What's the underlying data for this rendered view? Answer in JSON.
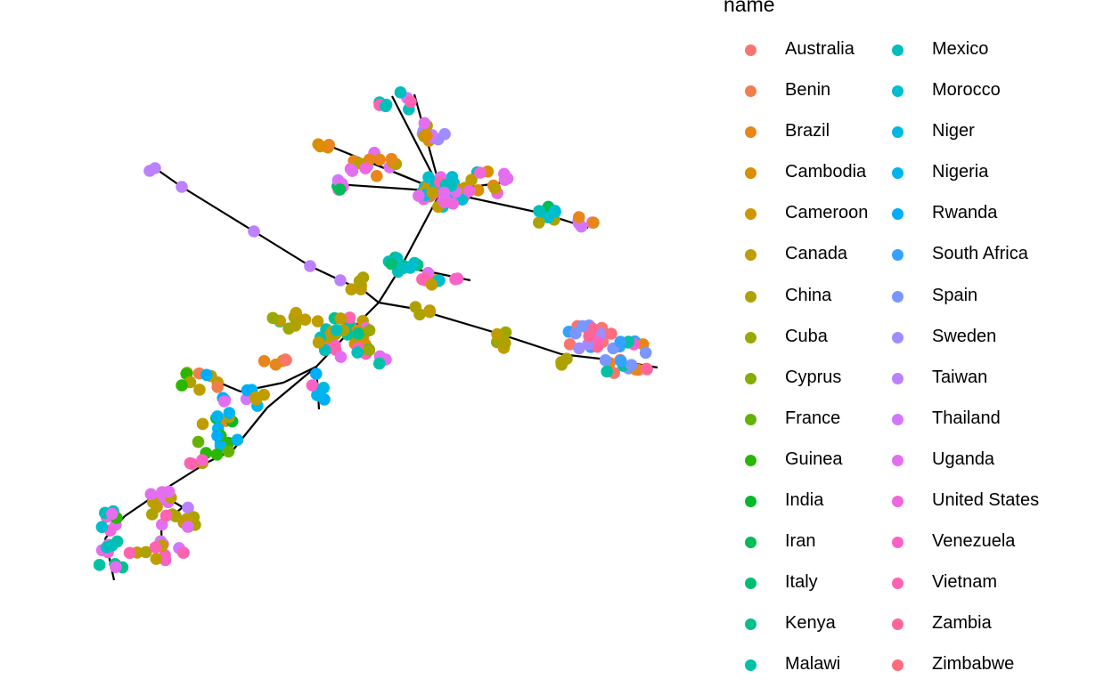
{
  "chart_data": {
    "type": "scatter",
    "subtype": "network-graph",
    "legend": {
      "title": "name",
      "placement": "right",
      "columns": 2,
      "entries": [
        {
          "name": "Australia",
          "color": "#F8766D"
        },
        {
          "name": "Benin",
          "color": "#F07F4E"
        },
        {
          "name": "Brazil",
          "color": "#E7861B"
        },
        {
          "name": "Cambodia",
          "color": "#DB8E00"
        },
        {
          "name": "Cameroon",
          "color": "#CE9700"
        },
        {
          "name": "Canada",
          "color": "#BF9D00"
        },
        {
          "name": "China",
          "color": "#AEA200"
        },
        {
          "name": "Cuba",
          "color": "#9AA800"
        },
        {
          "name": "Cyprus",
          "color": "#83AD00"
        },
        {
          "name": "France",
          "color": "#64B200"
        },
        {
          "name": "Guinea",
          "color": "#2BB600"
        },
        {
          "name": "India",
          "color": "#00B92A"
        },
        {
          "name": "Iran",
          "color": "#00BC56"
        },
        {
          "name": "Italy",
          "color": "#00BE74"
        },
        {
          "name": "Kenya",
          "color": "#00C08D"
        },
        {
          "name": "Malawi",
          "color": "#00C1A5"
        },
        {
          "name": "Mexico",
          "color": "#00BFBB"
        },
        {
          "name": "Morocco",
          "color": "#00BDD0"
        },
        {
          "name": "Niger",
          "color": "#00B9E3"
        },
        {
          "name": "Nigeria",
          "color": "#00B4F0"
        },
        {
          "name": "Rwanda",
          "color": "#00ACFC"
        },
        {
          "name": "South Africa",
          "color": "#35A2FF"
        },
        {
          "name": "Spain",
          "color": "#7997FF"
        },
        {
          "name": "Sweden",
          "color": "#9F8CFF"
        },
        {
          "name": "Taiwan",
          "color": "#BB81FF"
        },
        {
          "name": "Thailand",
          "color": "#D277FF"
        },
        {
          "name": "Uganda",
          "color": "#E36FF0"
        },
        {
          "name": "United States",
          "color": "#F067DD"
        },
        {
          "name": "Venezuela",
          "color": "#FA62C8"
        },
        {
          "name": "Vietnam",
          "color": "#FF62B0"
        },
        {
          "name": "Zambia",
          "color": "#FF6697"
        },
        {
          "name": "Zimbabwe",
          "color": "#FF6C7C"
        }
      ]
    },
    "axes_visible": false,
    "grid": false,
    "edge_color": "#000000"
  }
}
